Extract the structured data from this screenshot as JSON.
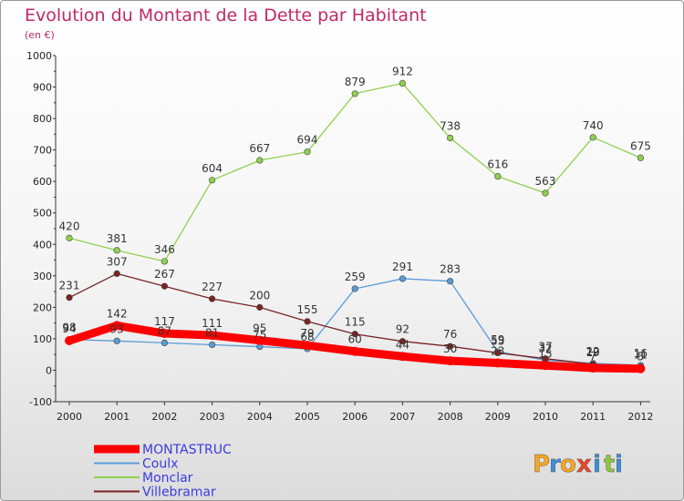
{
  "chart_data": {
    "type": "line",
    "title": "Evolution du Montant de la Dette par Habitant",
    "subtitle": "(en €)",
    "x": [
      "2000",
      "2001",
      "2002",
      "2003",
      "2004",
      "2005",
      "2006",
      "2007",
      "2008",
      "2009",
      "2010",
      "2011",
      "2012"
    ],
    "ylim": [
      -100,
      1000
    ],
    "yticks": [
      -100,
      0,
      100,
      200,
      300,
      400,
      500,
      600,
      700,
      800,
      900,
      1000
    ],
    "grid": false,
    "legend_position": "bottom-left",
    "series": [
      {
        "name": "MONTASTRUC",
        "color": "#ff0000",
        "emphasis": true,
        "values": [
          94,
          142,
          117,
          111,
          95,
          79,
          60,
          44,
          30,
          23,
          15,
          7,
          5
        ]
      },
      {
        "name": "Coulx",
        "color": "#5b9bd5",
        "emphasis": false,
        "values": [
          98,
          93,
          87,
          81,
          75,
          68,
          259,
          291,
          283,
          59,
          32,
          22,
          16
        ]
      },
      {
        "name": "Monclar",
        "color": "#8fd14f",
        "emphasis": false,
        "values": [
          420,
          381,
          346,
          604,
          667,
          694,
          879,
          912,
          738,
          616,
          563,
          740,
          675
        ]
      },
      {
        "name": "Villebramar",
        "color": "#7a2323",
        "emphasis": false,
        "values": [
          231,
          307,
          267,
          227,
          200,
          155,
          115,
          92,
          76,
          55,
          37,
          19,
          11
        ]
      }
    ]
  },
  "brand": {
    "letters": [
      "P",
      "r",
      "o",
      "x",
      "i",
      "t",
      "i"
    ]
  }
}
